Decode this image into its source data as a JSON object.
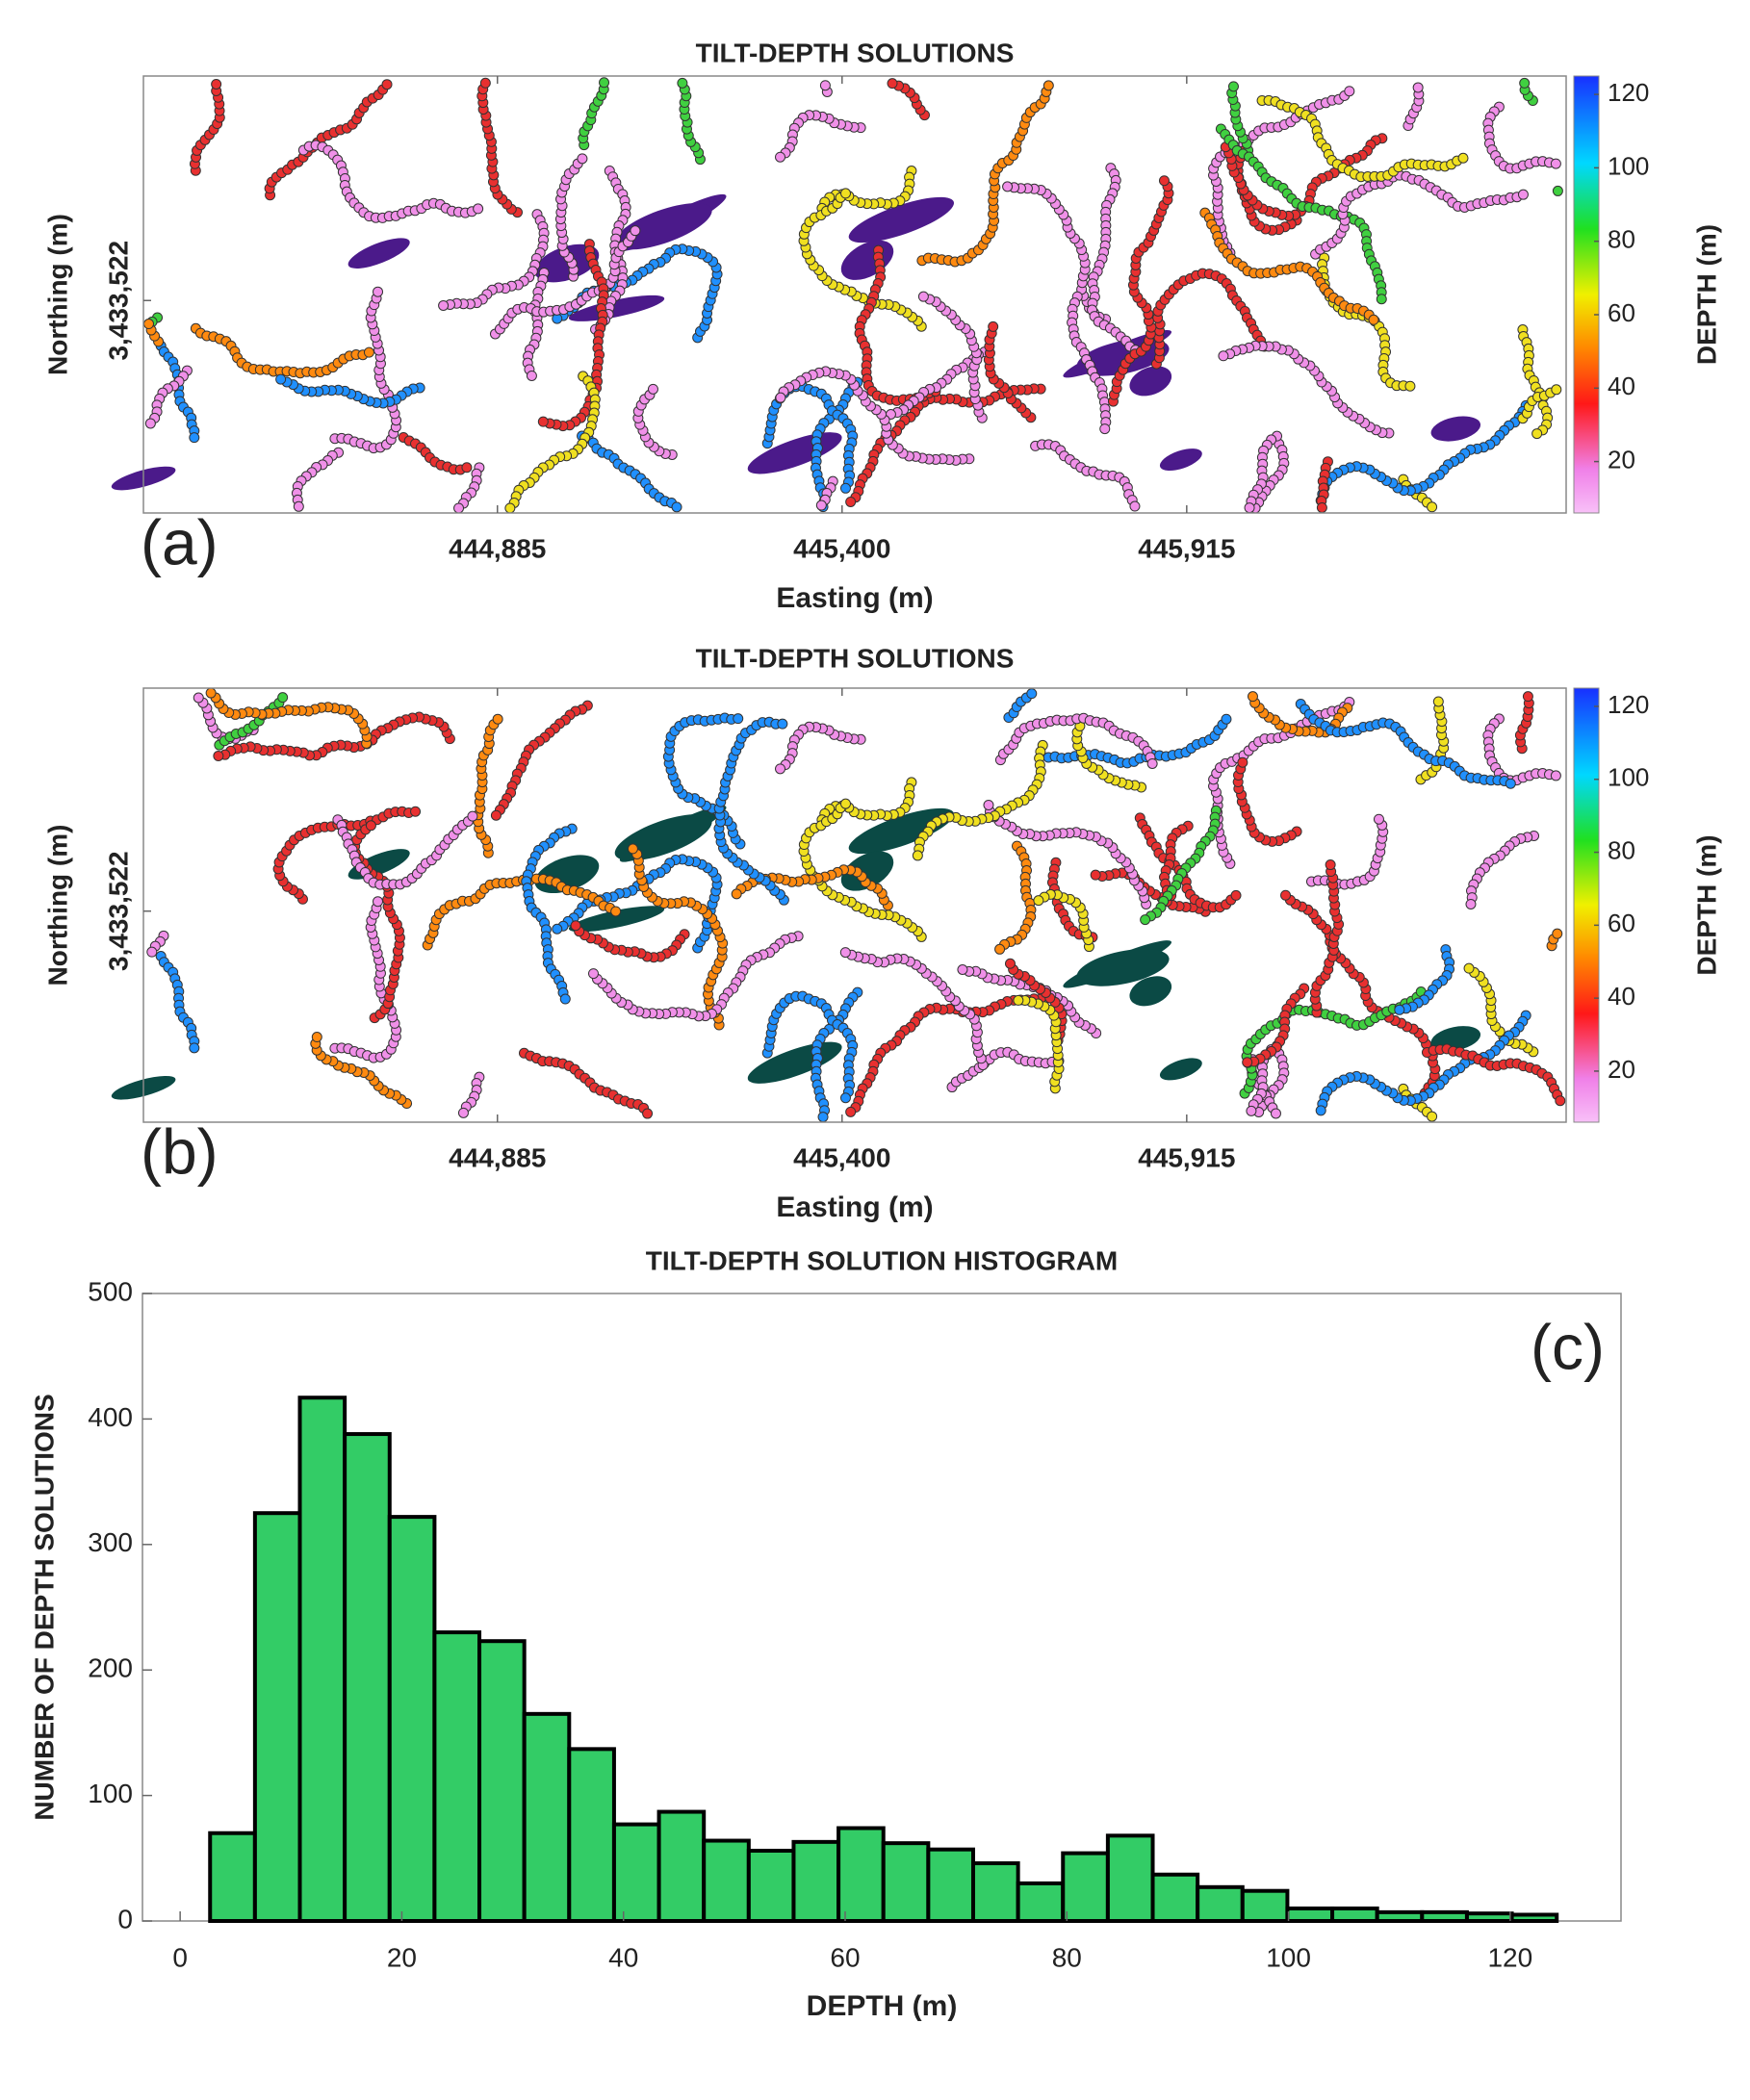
{
  "chart_data": [
    {
      "type": "scatter",
      "title": "TILT-DEPTH SOLUTIONS",
      "panel_label": "(a)",
      "xlabel": "Easting (m)",
      "ylabel": "Northing (m)",
      "xlim": [
        444356,
        446482
      ],
      "xticks": [
        {
          "value": 444885,
          "label": "444,885"
        },
        {
          "value": 445400,
          "label": "445,400"
        },
        {
          "value": 445915,
          "label": "445,915"
        }
      ],
      "ylim": [
        3433204,
        3433858
      ],
      "yticks": [
        {
          "value": 3433522,
          "label": "3,433,522"
        }
      ],
      "overlay_color": "#4b1a8a",
      "colorbar": {
        "label": "DEPTH (m)",
        "lim": [
          6,
          125
        ],
        "ticks": [
          20,
          40,
          60,
          80,
          100,
          120
        ]
      }
    },
    {
      "type": "scatter",
      "title": "TILT-DEPTH SOLUTIONS",
      "panel_label": "(b)",
      "xlabel": "Easting (m)",
      "ylabel": "Northing (m)",
      "xlim": [
        444356,
        446482
      ],
      "xticks": [
        {
          "value": 444885,
          "label": "444,885"
        },
        {
          "value": 445400,
          "label": "445,400"
        },
        {
          "value": 445915,
          "label": "445,915"
        }
      ],
      "ylim": [
        3433204,
        3433858
      ],
      "yticks": [
        {
          "value": 3433522,
          "label": "3,433,522"
        }
      ],
      "overlay_color": "#0b4a45",
      "colorbar": {
        "label": "DEPTH (m)",
        "lim": [
          6,
          125
        ],
        "ticks": [
          20,
          40,
          60,
          80,
          100,
          120
        ]
      }
    },
    {
      "type": "histogram",
      "title": "TILT-DEPTH SOLUTION HISTOGRAM",
      "panel_label": "(c)",
      "xlabel": "DEPTH (m)",
      "ylabel": "NUMBER OF DEPTH SOLUTIONS",
      "bins": [
        2.7,
        6.75,
        10.8,
        14.85,
        18.9,
        22.95,
        27,
        31.05,
        35.1,
        39.15,
        43.2,
        47.25,
        51.3,
        55.35,
        59.4,
        63.45,
        67.5,
        71.55,
        75.6,
        79.65,
        83.7,
        87.75,
        91.8,
        95.85,
        99.9,
        103.95,
        108,
        112.05,
        116.1,
        120.15,
        124.2
      ],
      "values": [
        70,
        325,
        417,
        388,
        322,
        230,
        223,
        165,
        137,
        77,
        87,
        64,
        56,
        63,
        74,
        62,
        57,
        46,
        30,
        54,
        68,
        37,
        27,
        24,
        10,
        10,
        7,
        7,
        6,
        5
      ],
      "color": "#33cc66",
      "xlim": [
        -3.4,
        130
      ],
      "xticks": [
        0,
        20,
        40,
        60,
        80,
        100,
        120
      ],
      "ylim": [
        0,
        500
      ],
      "yticks": [
        0,
        100,
        200,
        300,
        400,
        500
      ]
    }
  ]
}
